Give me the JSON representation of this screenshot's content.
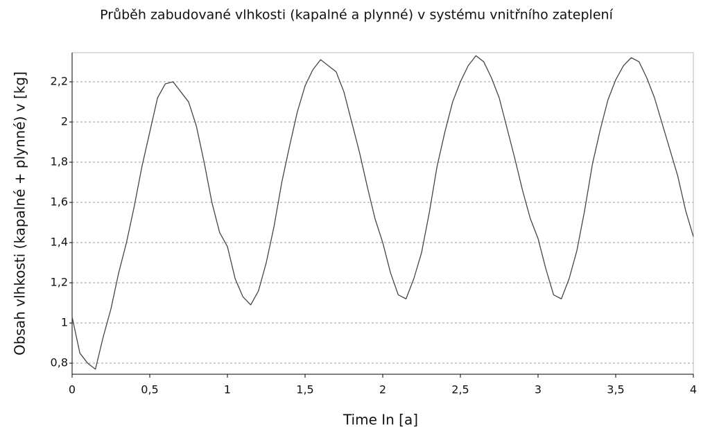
{
  "chart_data": {
    "type": "line",
    "title": "Průběh zabudované vlhkosti (kapalné a plynné) v systému vnitřního zateplení",
    "x_label": "Time In [a]",
    "y_label": "Obsah vlhkosti (kapalné + plynné) v [kg]",
    "x": [
      0,
      0.05,
      0.1,
      0.15,
      0.2,
      0.25,
      0.3,
      0.35,
      0.4,
      0.45,
      0.5,
      0.55,
      0.6,
      0.65,
      0.7,
      0.75,
      0.8,
      0.85,
      0.9,
      0.95,
      1,
      1.05,
      1.1,
      1.15,
      1.2,
      1.25,
      1.3,
      1.35,
      1.4,
      1.45,
      1.5,
      1.55,
      1.6,
      1.65,
      1.7,
      1.75,
      1.8,
      1.85,
      1.9,
      1.95,
      2,
      2.05,
      2.1,
      2.15,
      2.2,
      2.25,
      2.3,
      2.35,
      2.4,
      2.45,
      2.5,
      2.55,
      2.6,
      2.65,
      2.7,
      2.75,
      2.8,
      2.85,
      2.9,
      2.95,
      3,
      3.05,
      3.1,
      3.15,
      3.2,
      3.25,
      3.3,
      3.35,
      3.4,
      3.45,
      3.5,
      3.55,
      3.6,
      3.65,
      3.7,
      3.75,
      3.8,
      3.85,
      3.9,
      3.95,
      4
    ],
    "series": [
      {
        "color": "#444444",
        "values": [
          1.03,
          0.85,
          0.8,
          0.77,
          0.93,
          1.07,
          1.25,
          1.4,
          1.58,
          1.78,
          1.95,
          2.12,
          2.19,
          2.2,
          2.15,
          2.1,
          1.98,
          1.8,
          1.6,
          1.45,
          1.38,
          1.22,
          1.13,
          1.09,
          1.16,
          1.3,
          1.48,
          1.7,
          1.88,
          2.05,
          2.18,
          2.26,
          2.31,
          2.28,
          2.25,
          2.15,
          2.0,
          1.85,
          1.68,
          1.52,
          1.4,
          1.25,
          1.14,
          1.12,
          1.22,
          1.35,
          1.55,
          1.78,
          1.95,
          2.1,
          2.2,
          2.28,
          2.33,
          2.3,
          2.22,
          2.12,
          1.97,
          1.82,
          1.66,
          1.52,
          1.42,
          1.27,
          1.14,
          1.12,
          1.22,
          1.36,
          1.56,
          1.79,
          1.96,
          2.11,
          2.21,
          2.28,
          2.32,
          2.3,
          2.22,
          2.12,
          1.99,
          1.86,
          1.73,
          1.56,
          1.43
        ]
      }
    ],
    "xlim": [
      0,
      4
    ],
    "xticks": [
      0,
      {
        "value": 0.5,
        "label": "0,5"
      },
      1,
      {
        "value": 1.5,
        "label": "1,5"
      },
      2,
      {
        "value": 2.5,
        "label": "2,5"
      },
      3,
      {
        "value": 3.5,
        "label": "3,5"
      },
      4
    ],
    "ylim": [
      0.745,
      2.345
    ],
    "yticks": [
      {
        "value": 0.8,
        "label": "0,8"
      },
      1,
      {
        "value": 1.2,
        "label": "1,2"
      },
      {
        "value": 1.4,
        "label": "1,4"
      },
      {
        "value": 1.6,
        "label": "1,6"
      },
      {
        "value": 1.8,
        "label": "1,8"
      },
      2,
      {
        "value": 2.2,
        "label": "2,2"
      }
    ],
    "grid": true
  }
}
